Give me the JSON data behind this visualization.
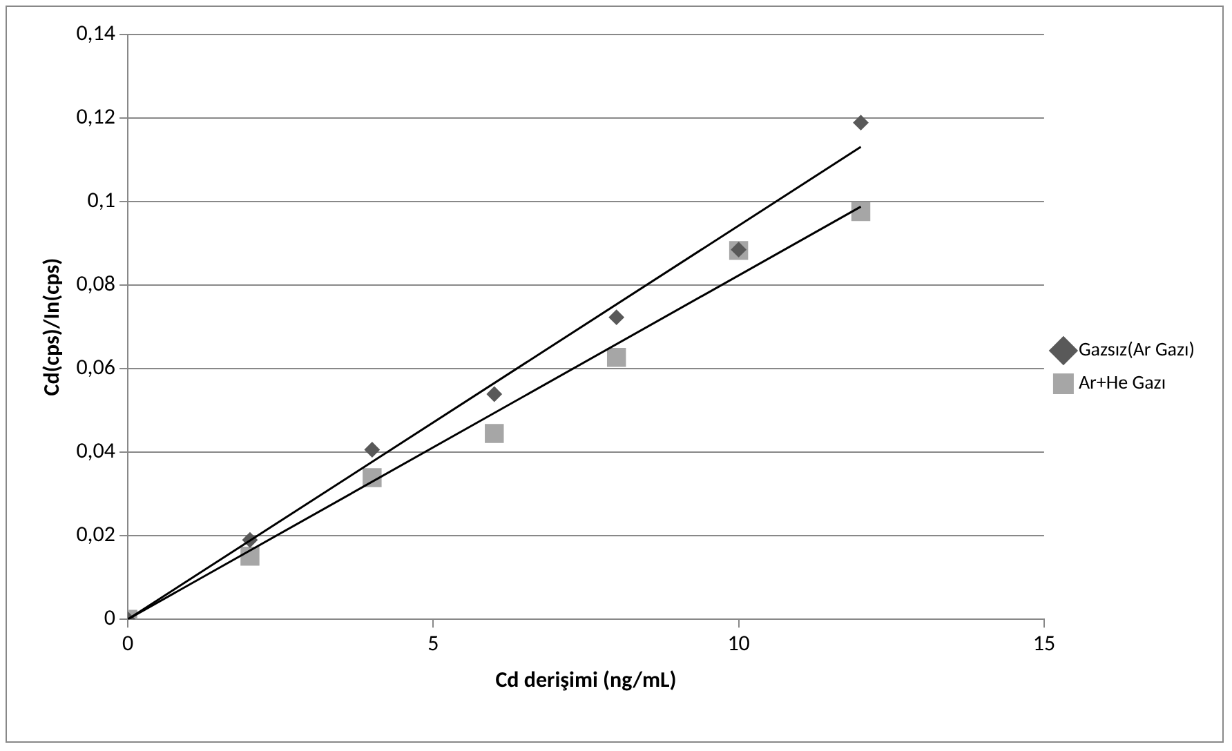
{
  "chart_data": {
    "type": "scatter",
    "xlabel": "Cd derişimi (ng/mL)",
    "ylabel": "Cd(cps)/In(cps)",
    "xlim": [
      0,
      15
    ],
    "xticks": [
      0,
      5,
      10,
      15
    ],
    "ylim": [
      0,
      0.14
    ],
    "yticks": [
      {
        "value": 0,
        "label": "0"
      },
      {
        "value": 0.02,
        "label": "0,02"
      },
      {
        "value": 0.04,
        "label": "0,04"
      },
      {
        "value": 0.06,
        "label": "0,06"
      },
      {
        "value": 0.08,
        "label": "0,08"
      },
      {
        "value": 0.1,
        "label": "0,1"
      },
      {
        "value": 0.12,
        "label": "0,12"
      },
      {
        "value": 0.14,
        "label": "0,14"
      }
    ],
    "grid": "y",
    "legend": "right",
    "series": [
      {
        "name": "Gazsız(Ar Gazı)",
        "color": "#595959",
        "marker": "diamond",
        "x": [
          0,
          2,
          4,
          6,
          8,
          10,
          12
        ],
        "values": [
          0,
          0.019,
          0.0406,
          0.0539,
          0.0723,
          0.0885,
          0.1189
        ]
      },
      {
        "name": "Ar+He Gazı",
        "color": "#a6a6a6",
        "marker": "square",
        "x": [
          0,
          2,
          4,
          6,
          8,
          10,
          12
        ],
        "values": [
          0,
          0.0151,
          0.0339,
          0.0445,
          0.0627,
          0.0883,
          0.0976
        ]
      },
      {
        "type": "line",
        "color": "#000000",
        "marker": "none",
        "x": [
          0,
          12
        ],
        "values": [
          0,
          0.1131
        ]
      },
      {
        "type": "line",
        "color": "#000000",
        "marker": "none",
        "x": [
          0,
          12
        ],
        "values": [
          0,
          0.0988
        ]
      }
    ]
  }
}
